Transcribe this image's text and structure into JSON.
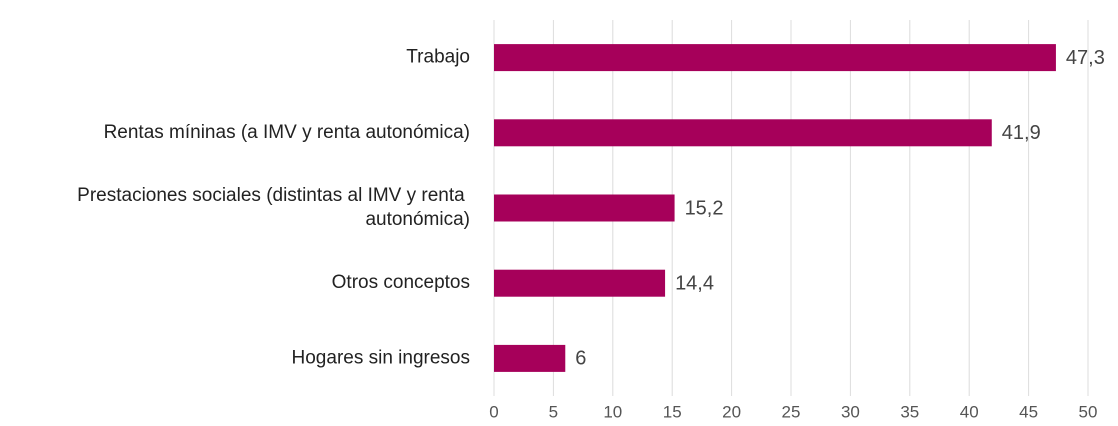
{
  "chart_data": {
    "type": "bar",
    "orientation": "horizontal",
    "categories": [
      "Trabajo",
      "Rentas míninas (a IMV y renta autonómica)",
      "Prestaciones sociales (distintas al IMV y renta autonómica)",
      "Otros conceptos",
      "Hogares sin ingresos"
    ],
    "values": [
      47.3,
      41.9,
      15.2,
      14.4,
      6
    ],
    "value_labels": [
      "47,3",
      "41,9",
      "15,2",
      "14,4",
      "6"
    ],
    "color": "#a6005a",
    "xlim": [
      0,
      50
    ],
    "xticks": [
      0,
      5,
      10,
      15,
      20,
      25,
      30,
      35,
      40,
      45,
      50
    ],
    "grid": true
  }
}
